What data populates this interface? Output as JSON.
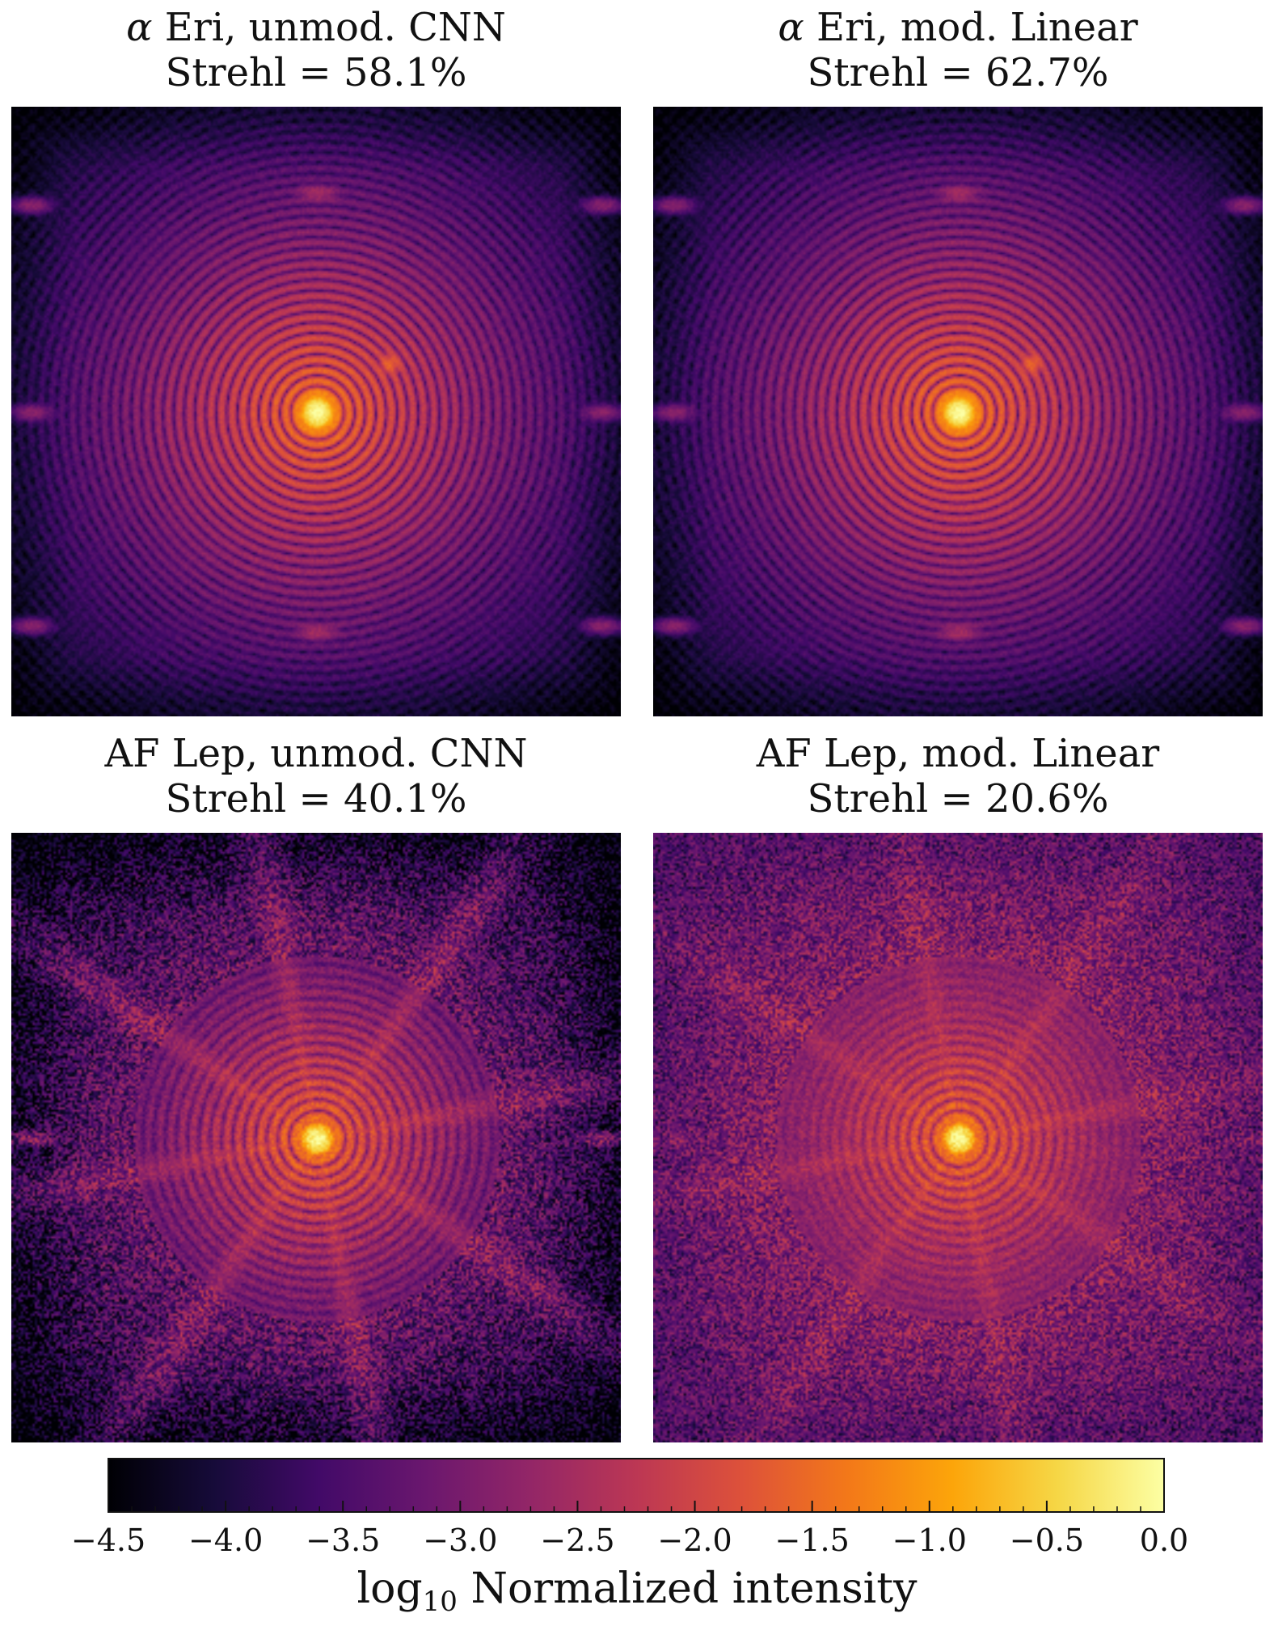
{
  "figure": {
    "panels": [
      {
        "id": "alpha-eri-unmod-cnn",
        "title_prefix": "α",
        "title_main": " Eri, unmod. CNN",
        "strehl_label": "Strehl = 58.1%",
        "strehl_percent": 58.1,
        "colormap": "inferno",
        "style": "eri"
      },
      {
        "id": "alpha-eri-mod-linear",
        "title_prefix": "α",
        "title_main": " Eri, mod. Linear",
        "strehl_label": "Strehl = 62.7%",
        "strehl_percent": 62.7,
        "colormap": "inferno",
        "style": "eri"
      },
      {
        "id": "af-lep-unmod-cnn",
        "title_prefix": "",
        "title_main": "AF Lep, unmod. CNN",
        "strehl_label": "Strehl = 40.1%",
        "strehl_percent": 40.1,
        "colormap": "inferno",
        "style": "lep-cnn"
      },
      {
        "id": "af-lep-mod-linear",
        "title_prefix": "",
        "title_main": "AF Lep, mod. Linear",
        "strehl_label": "Strehl = 20.6%",
        "strehl_percent": 20.6,
        "colormap": "inferno",
        "style": "lep-linear"
      }
    ],
    "colorbar": {
      "label_main": "log",
      "label_sub": "10",
      "label_rest": " Normalized intensity",
      "range": [
        -4.5,
        0.0
      ],
      "ticks": [
        -4.5,
        -4.0,
        -3.5,
        -3.0,
        -2.5,
        -2.0,
        -1.5,
        -1.0,
        -0.5,
        0.0
      ],
      "tick_labels": [
        "−4.5",
        "−4.0",
        "−3.5",
        "−3.0",
        "−2.5",
        "−2.0",
        "−1.5",
        "−1.0",
        "−0.5",
        "0.0"
      ],
      "minor_step": 0.1,
      "colormap": "inferno"
    }
  },
  "chart_data": {
    "type": "heatmap",
    "layout": "2x2 grid of images with shared horizontal colorbar",
    "colormap": "inferno",
    "scale": "log10",
    "value_range": [
      -4.5,
      0.0
    ],
    "panel_titles": [
      "α Eri, unmod. CNN",
      "α Eri, mod. Linear",
      "AF Lep, unmod. CNN",
      "AF Lep, mod. Linear"
    ],
    "strehl_ratios_percent": [
      58.1,
      62.7,
      40.1,
      20.6
    ],
    "colorbar_label": "log10 Normalized intensity",
    "colorbar_ticks": [
      -4.5,
      -4.0,
      -3.5,
      -3.0,
      -2.5,
      -2.0,
      -1.5,
      -1.0,
      -0.5,
      0.0
    ]
  }
}
